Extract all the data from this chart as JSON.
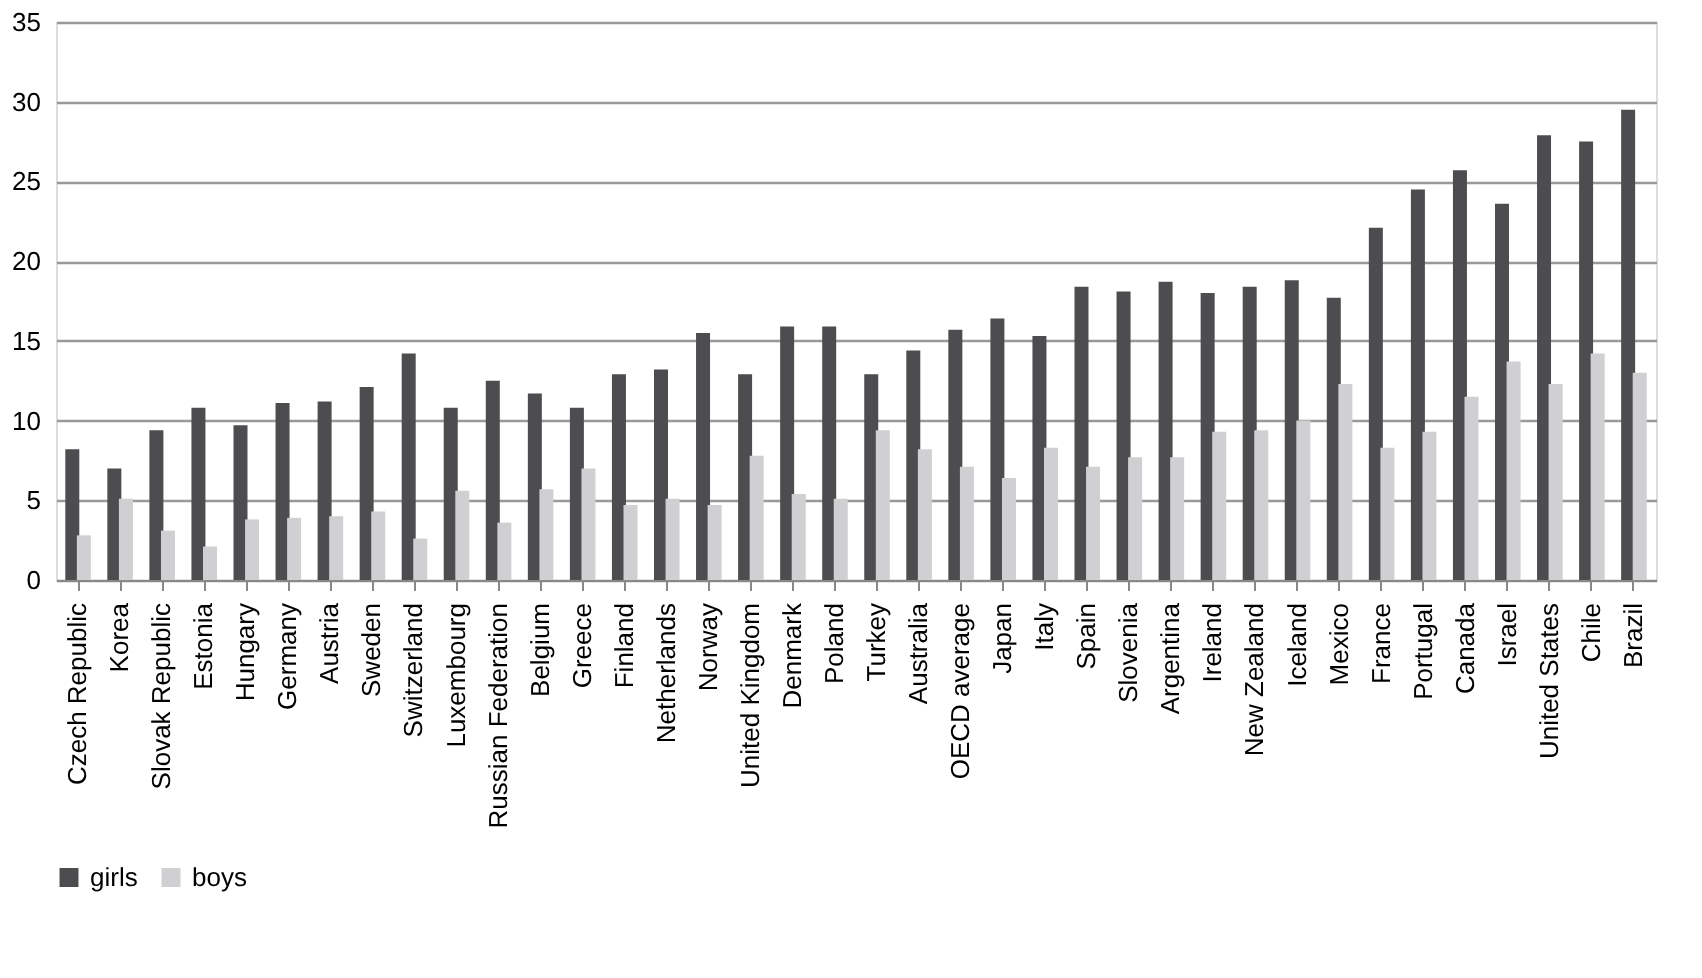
{
  "chart_data": {
    "type": "bar",
    "categories": [
      "Czech Republic",
      "Korea",
      "Slovak Republic",
      "Estonia",
      "Hungary",
      "Germany",
      "Austria",
      "Sweden",
      "Switzerland",
      "Luxembourg",
      "Russian Federation",
      "Belgium",
      "Greece",
      "Finland",
      "Netherlands",
      "Norway",
      "United Kingdom",
      "Denmark",
      "Poland",
      "Turkey",
      "Australia",
      "OECD average",
      "Japan",
      "Italy",
      "Spain",
      "Slovenia",
      "Argentina",
      "Ireland",
      "New Zealand",
      "Iceland",
      "Mexico",
      "France",
      "Portugal",
      "Canada",
      "Israel",
      "United States",
      "Chile",
      "Brazil"
    ],
    "series": [
      {
        "name": "girls",
        "color": "#4d4d4f",
        "values": [
          8.2,
          7.0,
          9.4,
          10.8,
          9.7,
          11.1,
          11.2,
          12.1,
          14.2,
          10.8,
          12.5,
          11.7,
          10.8,
          12.9,
          13.2,
          15.5,
          12.9,
          15.9,
          15.9,
          12.9,
          14.4,
          15.7,
          16.4,
          15.3,
          18.4,
          18.1,
          18.7,
          18.0,
          18.4,
          18.8,
          17.7,
          22.1,
          24.5,
          25.7,
          23.6,
          27.9,
          27.5,
          29.5
        ]
      },
      {
        "name": "boys",
        "color": "#d0d0d2",
        "values": [
          2.8,
          5.1,
          3.1,
          2.1,
          3.8,
          3.9,
          4.0,
          4.3,
          2.6,
          5.6,
          3.6,
          5.7,
          7.0,
          4.7,
          5.1,
          4.7,
          7.8,
          5.4,
          5.1,
          9.4,
          8.2,
          7.1,
          6.4,
          8.3,
          7.1,
          7.7,
          7.7,
          9.3,
          9.4,
          10.0,
          12.3,
          8.3,
          9.3,
          11.5,
          13.7,
          12.3,
          14.2,
          13.0
        ]
      }
    ],
    "ylim": [
      0,
      35
    ],
    "yticks": [
      0,
      5,
      10,
      15,
      20,
      25,
      30,
      35
    ],
    "grid": "y",
    "legend": "bottom"
  }
}
